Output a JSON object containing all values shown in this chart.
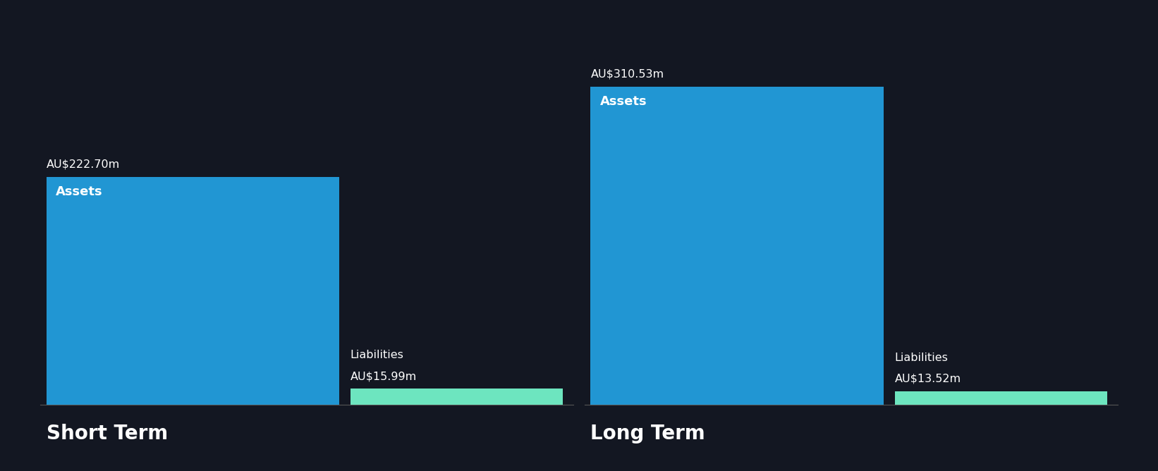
{
  "background_color": "#131722",
  "groups": [
    {
      "label": "Short Term",
      "assets_value": 222.7,
      "assets_label": "AU$222.70m",
      "assets_inner_label": "Assets",
      "liabilities_value": 15.99,
      "liabilities_label": "AU$15.99m",
      "liabilities_inner_label": "Liabilities"
    },
    {
      "label": "Long Term",
      "assets_value": 310.53,
      "assets_label": "AU$310.53m",
      "assets_inner_label": "Assets",
      "liabilities_value": 13.52,
      "liabilities_label": "AU$13.52m",
      "liabilities_inner_label": "Liabilities"
    }
  ],
  "assets_color": "#2196d3",
  "liabilities_color": "#6de5bf",
  "text_color": "#ffffff",
  "label_fontsize": 11.5,
  "inner_label_fontsize": 13,
  "group_label_fontsize": 20,
  "max_value": 340
}
